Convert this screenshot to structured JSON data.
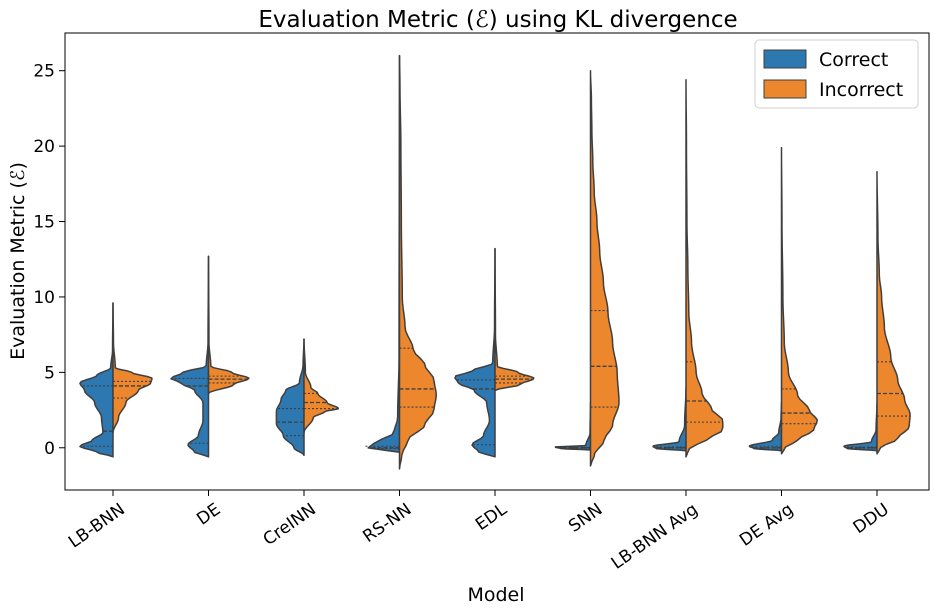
{
  "chart_data": {
    "type": "violin",
    "title": "Evaluation Metric (ℰ) using KL divergence",
    "xlabel": "Model",
    "ylabel": "Evaluation Metric (ℰ)",
    "ylim": [
      -2.8,
      27.5
    ],
    "yticks": [
      0,
      5,
      10,
      15,
      20,
      25
    ],
    "split": true,
    "inner": "quartiles",
    "legend": {
      "location": "top-right",
      "entries": [
        {
          "name": "Correct",
          "color": "#2e78b2"
        },
        {
          "name": "Incorrect",
          "color": "#ec872e"
        }
      ]
    },
    "categories": [
      "LB-BNN",
      "DE",
      "CreINN",
      "RS-NN",
      "EDL",
      "SNN",
      "LB-BNN Avg",
      "DE Avg",
      "DDU"
    ],
    "series": [
      {
        "name": "Correct",
        "color": "#2e78b2",
        "violins": [
          {
            "profile": [
              [
                -0.6,
                0
              ],
              [
                -0.3,
                0.35
              ],
              [
                0.1,
                0.72
              ],
              [
                0.5,
                0.45
              ],
              [
                1.0,
                0.22
              ],
              [
                2.0,
                0.25
              ],
              [
                3.0,
                0.4
              ],
              [
                3.8,
                0.62
              ],
              [
                4.3,
                0.72
              ],
              [
                4.8,
                0.35
              ],
              [
                5.3,
                0.05
              ],
              [
                6.5,
                0.01
              ],
              [
                9.6,
                0
              ]
            ],
            "quartiles": [
              0.1,
              1.1,
              4.1
            ]
          },
          {
            "profile": [
              [
                -0.6,
                0
              ],
              [
                -0.3,
                0.3
              ],
              [
                0.2,
                0.45
              ],
              [
                0.8,
                0.22
              ],
              [
                1.8,
                0.12
              ],
              [
                3.0,
                0.12
              ],
              [
                3.8,
                0.3
              ],
              [
                4.3,
                0.6
              ],
              [
                4.6,
                0.82
              ],
              [
                5.0,
                0.55
              ],
              [
                5.4,
                0.05
              ],
              [
                7,
                0.01
              ],
              [
                12.7,
                0
              ]
            ],
            "quartiles": [
              0.3,
              4.1,
              4.6
            ]
          },
          {
            "profile": [
              [
                -0.5,
                0
              ],
              [
                0,
                0.22
              ],
              [
                0.8,
                0.45
              ],
              [
                1.6,
                0.6
              ],
              [
                2.4,
                0.6
              ],
              [
                3.2,
                0.5
              ],
              [
                3.8,
                0.4
              ],
              [
                4.3,
                0.1
              ],
              [
                5.5,
                0.02
              ],
              [
                7.2,
                0
              ]
            ],
            "quartiles": [
              0.8,
              1.7,
              2.6
            ]
          },
          {
            "profile": [
              [
                -0.3,
                0
              ],
              [
                -0.1,
                0.6
              ],
              [
                0.1,
                0.78
              ],
              [
                0.4,
                0.45
              ],
              [
                1.0,
                0.12
              ],
              [
                2.0,
                0.04
              ],
              [
                6,
                0.01
              ],
              [
                26,
                0
              ]
            ],
            "quartiles": [
              -0.05,
              0.0,
              0.1
            ]
          },
          {
            "profile": [
              [
                -0.6,
                0
              ],
              [
                -0.3,
                0.35
              ],
              [
                0.2,
                0.5
              ],
              [
                0.8,
                0.25
              ],
              [
                1.8,
                0.12
              ],
              [
                3.0,
                0.18
              ],
              [
                3.8,
                0.45
              ],
              [
                4.3,
                0.8
              ],
              [
                4.7,
                0.88
              ],
              [
                5.1,
                0.5
              ],
              [
                5.6,
                0.05
              ],
              [
                8,
                0.01
              ],
              [
                13.2,
                0
              ]
            ],
            "quartiles": [
              0.2,
              3.9,
              4.5
            ]
          },
          {
            "profile": [
              [
                -0.15,
                0
              ],
              [
                -0.05,
                0.65
              ],
              [
                0.05,
                0.78
              ],
              [
                0.15,
                0.1
              ],
              [
                1,
                0.01
              ],
              [
                3,
                0
              ]
            ],
            "quartiles": [
              -0.03,
              0.0,
              0.03
            ]
          },
          {
            "profile": [
              [
                -0.2,
                0
              ],
              [
                -0.05,
                0.65
              ],
              [
                0.1,
                0.72
              ],
              [
                0.4,
                0.15
              ],
              [
                1.5,
                0.03
              ],
              [
                4,
                0
              ]
            ],
            "quartiles": [
              -0.02,
              0.0,
              0.05
            ]
          },
          {
            "profile": [
              [
                -0.2,
                0
              ],
              [
                -0.05,
                0.6
              ],
              [
                0.1,
                0.7
              ],
              [
                0.5,
                0.2
              ],
              [
                1.0,
                0.06
              ],
              [
                2,
                0.01
              ],
              [
                3,
                0
              ]
            ],
            "quartiles": [
              -0.02,
              0.0,
              0.1
            ]
          },
          {
            "profile": [
              [
                -0.2,
                0
              ],
              [
                -0.05,
                0.65
              ],
              [
                0.1,
                0.72
              ],
              [
                0.4,
                0.12
              ],
              [
                1.2,
                0.02
              ],
              [
                3,
                0
              ]
            ],
            "quartiles": [
              -0.02,
              0.0,
              0.05
            ]
          }
        ]
      },
      {
        "name": "Incorrect",
        "color": "#ec872e",
        "violins": [
          {
            "profile": [
              [
                1.0,
                0
              ],
              [
                2.0,
                0.12
              ],
              [
                3.0,
                0.28
              ],
              [
                3.8,
                0.55
              ],
              [
                4.3,
                0.82
              ],
              [
                4.6,
                0.85
              ],
              [
                5.0,
                0.4
              ],
              [
                5.3,
                0.05
              ],
              [
                7,
                0.01
              ],
              [
                9.6,
                0
              ]
            ],
            "quartiles": [
              3.3,
              4.1,
              4.4
            ]
          },
          {
            "profile": [
              [
                3.6,
                0
              ],
              [
                4.2,
                0.55
              ],
              [
                4.6,
                0.88
              ],
              [
                5.0,
                0.5
              ],
              [
                5.4,
                0.05
              ],
              [
                7,
                0.01
              ],
              [
                12.7,
                0
              ]
            ],
            "quartiles": [
              4.3,
              4.55,
              4.75
            ]
          },
          {
            "profile": [
              [
                1.0,
                0
              ],
              [
                2.0,
                0.2
              ],
              [
                2.4,
                0.45
              ],
              [
                2.6,
                0.75
              ],
              [
                3.0,
                0.5
              ],
              [
                3.6,
                0.3
              ],
              [
                4.0,
                0.15
              ],
              [
                5.0,
                0.03
              ],
              [
                7.2,
                0
              ]
            ],
            "quartiles": [
              2.6,
              3.0,
              3.6
            ]
          },
          {
            "profile": [
              [
                -1.4,
                0
              ],
              [
                -0.5,
                0.05
              ],
              [
                0.5,
                0.18
              ],
              [
                1.5,
                0.55
              ],
              [
                2.5,
                0.75
              ],
              [
                3.5,
                0.8
              ],
              [
                4.5,
                0.75
              ],
              [
                5.5,
                0.55
              ],
              [
                6.5,
                0.3
              ],
              [
                8,
                0.12
              ],
              [
                10,
                0.06
              ],
              [
                15,
                0.04
              ],
              [
                20,
                0.03
              ],
              [
                24,
                0.01
              ],
              [
                26,
                0
              ]
            ],
            "quartiles": [
              2.7,
              3.9,
              6.6
            ]
          },
          {
            "profile": [
              [
                3.8,
                0
              ],
              [
                4.2,
                0.55
              ],
              [
                4.6,
                0.85
              ],
              [
                5.0,
                0.5
              ],
              [
                5.4,
                0.05
              ],
              [
                7.5,
                0.01
              ],
              [
                13.2,
                0
              ]
            ],
            "quartiles": [
              4.3,
              4.55,
              4.75
            ]
          },
          {
            "profile": [
              [
                -1.2,
                0
              ],
              [
                -0.5,
                0.08
              ],
              [
                0.5,
                0.3
              ],
              [
                1.5,
                0.48
              ],
              [
                3.0,
                0.62
              ],
              [
                5.0,
                0.58
              ],
              [
                7.0,
                0.48
              ],
              [
                9.0,
                0.38
              ],
              [
                11.0,
                0.28
              ],
              [
                13.0,
                0.2
              ],
              [
                15.0,
                0.14
              ],
              [
                17.0,
                0.08
              ],
              [
                19.0,
                0.05
              ],
              [
                21.0,
                0.03
              ],
              [
                23.0,
                0.02
              ],
              [
                25,
                0
              ]
            ],
            "quartiles": [
              2.7,
              5.4,
              9.1
            ]
          },
          {
            "profile": [
              [
                -0.6,
                0
              ],
              [
                0.0,
                0.08
              ],
              [
                0.5,
                0.45
              ],
              [
                1.2,
                0.8
              ],
              [
                1.8,
                0.8
              ],
              [
                2.6,
                0.55
              ],
              [
                3.6,
                0.35
              ],
              [
                5.0,
                0.22
              ],
              [
                7.0,
                0.12
              ],
              [
                9.0,
                0.06
              ],
              [
                12.0,
                0.04
              ],
              [
                15.0,
                0.02
              ],
              [
                20,
                0.01
              ],
              [
                24.4,
                0
              ]
            ],
            "quartiles": [
              1.7,
              3.1,
              5.7
            ]
          },
          {
            "profile": [
              [
                -0.4,
                0
              ],
              [
                0.0,
                0.08
              ],
              [
                0.5,
                0.35
              ],
              [
                1.2,
                0.7
              ],
              [
                1.8,
                0.78
              ],
              [
                2.5,
                0.6
              ],
              [
                3.5,
                0.35
              ],
              [
                5.0,
                0.15
              ],
              [
                7.0,
                0.06
              ],
              [
                10,
                0.03
              ],
              [
                15,
                0.01
              ],
              [
                19.9,
                0
              ]
            ],
            "quartiles": [
              1.6,
              2.3,
              3.9
            ]
          },
          {
            "profile": [
              [
                -0.4,
                0
              ],
              [
                0.0,
                0.08
              ],
              [
                0.6,
                0.45
              ],
              [
                1.4,
                0.7
              ],
              [
                2.2,
                0.72
              ],
              [
                3.2,
                0.6
              ],
              [
                4.5,
                0.45
              ],
              [
                6.0,
                0.3
              ],
              [
                8.0,
                0.16
              ],
              [
                10.0,
                0.1
              ],
              [
                11.5,
                0.05
              ],
              [
                14,
                0.02
              ],
              [
                18.3,
                0
              ]
            ],
            "quartiles": [
              2.1,
              3.6,
              5.7
            ]
          }
        ]
      }
    ]
  }
}
